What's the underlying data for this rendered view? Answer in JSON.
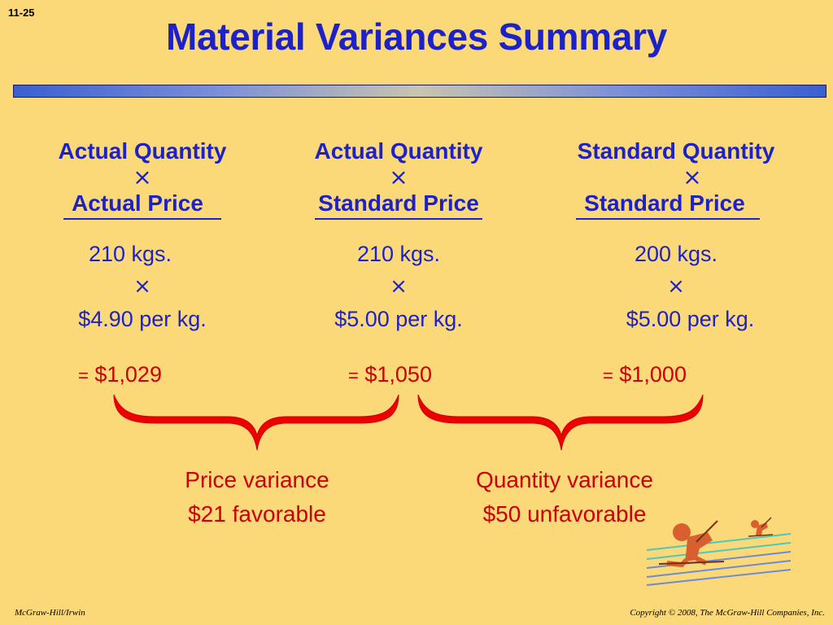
{
  "slide": {
    "number": "11-25",
    "title": "Material Variances Summary"
  },
  "columns": [
    {
      "header_top": "Actual Quantity",
      "operator": "×",
      "header_bottom": "Actual Price",
      "quantity": "210 kgs.",
      "value_operator": "×",
      "price": "$4.90 per kg.",
      "equals": "=",
      "result": "$1,029"
    },
    {
      "header_top": "Actual Quantity",
      "operator": "×",
      "header_bottom": "Standard Price",
      "quantity": "210 kgs.",
      "value_operator": "×",
      "price": "$5.00 per kg.",
      "equals": "=",
      "result": "$1,050"
    },
    {
      "header_top": "Standard Quantity",
      "operator": "×",
      "header_bottom": "Standard Price",
      "quantity": "200 kgs.",
      "value_operator": "×",
      "price": "$5.00 per kg.",
      "equals": "=",
      "result": "$1,000"
    }
  ],
  "variances": {
    "price": {
      "label": "Price variance",
      "amount": "$21 favorable"
    },
    "quantity": {
      "label": "Quantity variance",
      "amount": "$50 unfavorable"
    }
  },
  "colors": {
    "background": "#fbd978",
    "heading_blue": "#1d22c8",
    "variance_red": "#cc0000"
  },
  "icons": {
    "clipart": "skier-clipart-icon"
  },
  "footer": {
    "left": "McGraw-Hill/Irwin",
    "right": "Copyright © 2008, The McGraw-Hill Companies, Inc."
  }
}
